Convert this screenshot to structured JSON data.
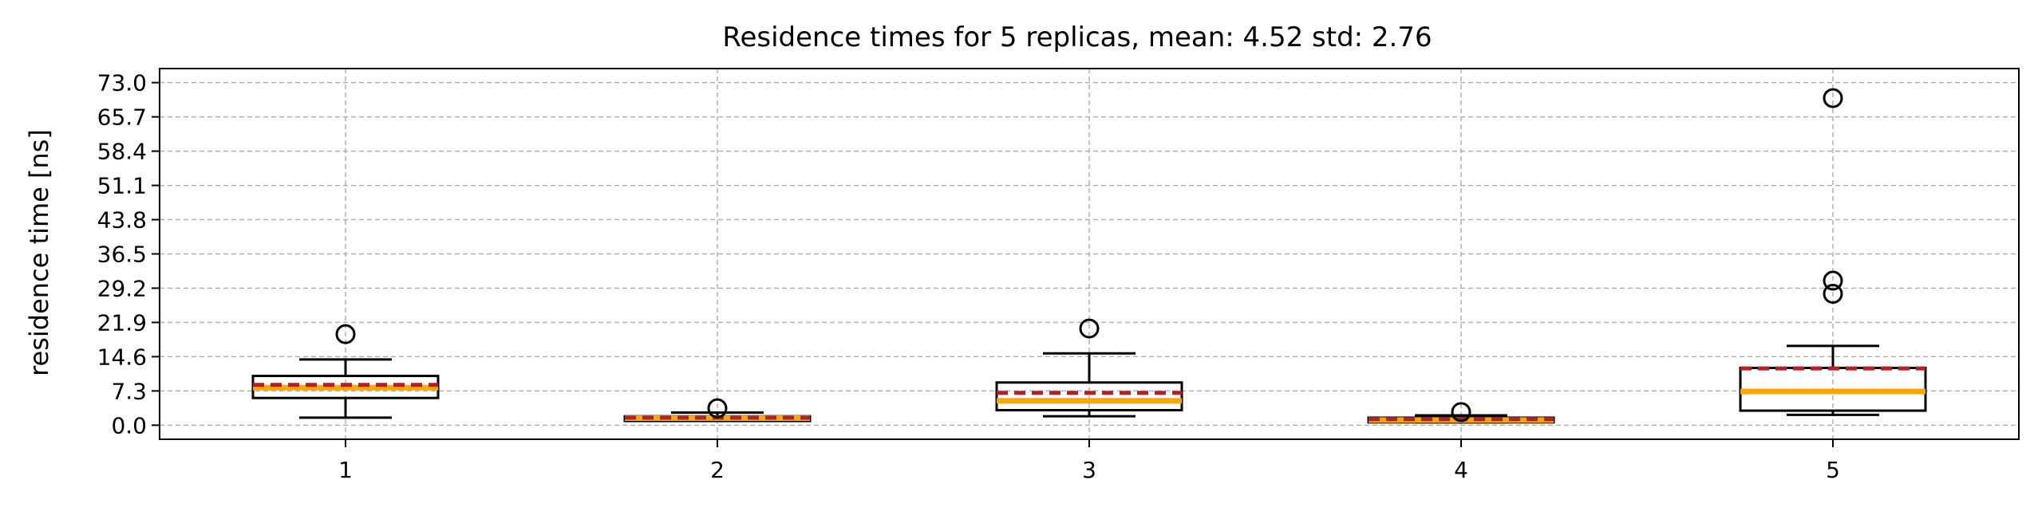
{
  "chart_data": {
    "type": "box",
    "title": "Residence times for 5 replicas, mean: 4.52  std: 2.76",
    "xlabel": "",
    "ylabel": "residence time [ns]",
    "categories": [
      "1",
      "2",
      "3",
      "4",
      "5"
    ],
    "y_ticks": [
      0.0,
      7.3,
      14.6,
      21.9,
      29.2,
      36.5,
      43.8,
      51.1,
      58.4,
      65.7,
      73.0
    ],
    "y_tick_labels": [
      "0.0",
      "7.3",
      "14.6",
      "21.9",
      "29.2",
      "36.5",
      "43.8",
      "51.1",
      "58.4",
      "65.7",
      "73.0"
    ],
    "ylim": [
      -3.0,
      76.0
    ],
    "xlim": [
      0.5,
      5.5
    ],
    "grid": true,
    "boxes": [
      {
        "category": "1",
        "whisker_low": 1.6,
        "q1": 5.8,
        "median": 8.0,
        "mean": 8.6,
        "q3": 10.5,
        "whisker_high": 14.0,
        "outliers": [
          19.4
        ]
      },
      {
        "category": "2",
        "whisker_low": 0.9,
        "q1": 0.9,
        "median": 1.5,
        "mean": 1.6,
        "q3": 1.9,
        "whisker_high": 2.7,
        "outliers": [
          3.6
        ]
      },
      {
        "category": "3",
        "whisker_low": 1.9,
        "q1": 3.2,
        "median": 5.2,
        "mean": 6.9,
        "q3": 9.1,
        "whisker_high": 15.3,
        "outliers": [
          20.6
        ]
      },
      {
        "category": "4",
        "whisker_low": 0.6,
        "q1": 0.6,
        "median": 1.1,
        "mean": 1.3,
        "q3": 1.6,
        "whisker_high": 2.1,
        "outliers": [
          2.8
        ]
      },
      {
        "category": "5",
        "whisker_low": 2.2,
        "q1": 3.1,
        "median": 7.2,
        "mean": 12.1,
        "q3": 12.2,
        "whisker_high": 16.9,
        "outliers": [
          28.0,
          30.8,
          69.7
        ]
      }
    ],
    "colors": {
      "box_edge": "#000000",
      "median": "#ffa500",
      "mean": "#b22222",
      "grid": "#b0b0b0",
      "outlier_edge": "#000000"
    }
  }
}
